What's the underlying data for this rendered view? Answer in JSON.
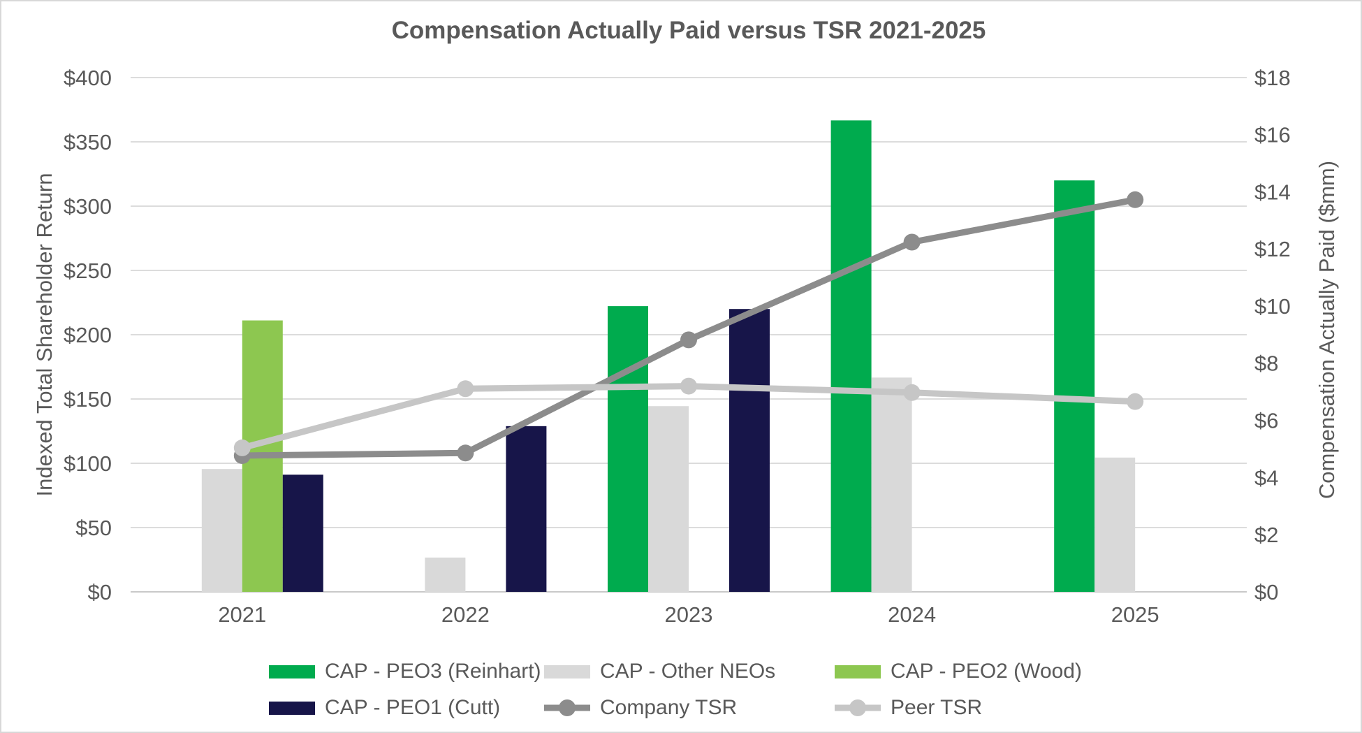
{
  "chart_data": {
    "type": "combo-bar-line",
    "title": "Compensation Actually Paid versus TSR 2021-2025",
    "categories": [
      "2021",
      "2022",
      "2023",
      "2024",
      "2025"
    ],
    "bar_series": [
      {
        "name": "CAP - PEO3 (Reinhart)",
        "color": "#00AB4E",
        "axis": "right",
        "values": [
          null,
          null,
          10,
          16.5,
          14.4
        ]
      },
      {
        "name": "CAP - Other NEOs",
        "color": "#D9D9D9",
        "axis": "right",
        "values": [
          4.3,
          1.2,
          6.5,
          7.5,
          4.7
        ]
      },
      {
        "name": "CAP - PEO2 (Wood)",
        "color": "#8DC750",
        "axis": "right",
        "values": [
          9.5,
          null,
          null,
          null,
          null
        ]
      },
      {
        "name": "CAP - PEO1 (Cutt)",
        "color": "#171549",
        "axis": "right",
        "values": [
          4.1,
          5.8,
          9.9,
          null,
          null
        ]
      }
    ],
    "line_series": [
      {
        "name": "Company TSR",
        "color": "#8C8C8C",
        "axis": "left",
        "values": [
          106,
          108,
          196,
          272,
          305
        ]
      },
      {
        "name": "Peer TSR",
        "color": "#C6C6C6",
        "axis": "left",
        "values": [
          112,
          158,
          160,
          155,
          148
        ]
      }
    ],
    "left_axis": {
      "title": "Indexed Total Shareholder Return",
      "min": 0,
      "max": 400,
      "step": 50,
      "tick_prefix": "$"
    },
    "right_axis": {
      "title": "Compensation Actually Paid ($mm)",
      "min": 0,
      "max": 18,
      "step": 2,
      "tick_prefix": "$"
    },
    "legend": {
      "rows": [
        [
          {
            "label": "CAP - PEO3 (Reinhart)",
            "marker": "bar",
            "color": "#00AB4E"
          },
          {
            "label": "CAP - Other NEOs",
            "marker": "bar",
            "color": "#D9D9D9"
          },
          {
            "label": "CAP - PEO2 (Wood)",
            "marker": "bar",
            "color": "#8DC750"
          }
        ],
        [
          {
            "label": "CAP - PEO1 (Cutt)",
            "marker": "bar",
            "color": "#171549"
          },
          {
            "label": "Company TSR",
            "marker": "line",
            "color": "#8C8C8C"
          },
          {
            "label": "Peer TSR",
            "marker": "line",
            "color": "#C6C6C6"
          }
        ]
      ]
    },
    "style": {
      "text_color": "#595959",
      "grid_color": "#DCDCDC",
      "baseline_color": "#C9C9C9",
      "background": "#FFFFFF",
      "border_color": "#D8D8D8"
    },
    "grid": "horizontal-only",
    "legend_position": "bottom"
  }
}
